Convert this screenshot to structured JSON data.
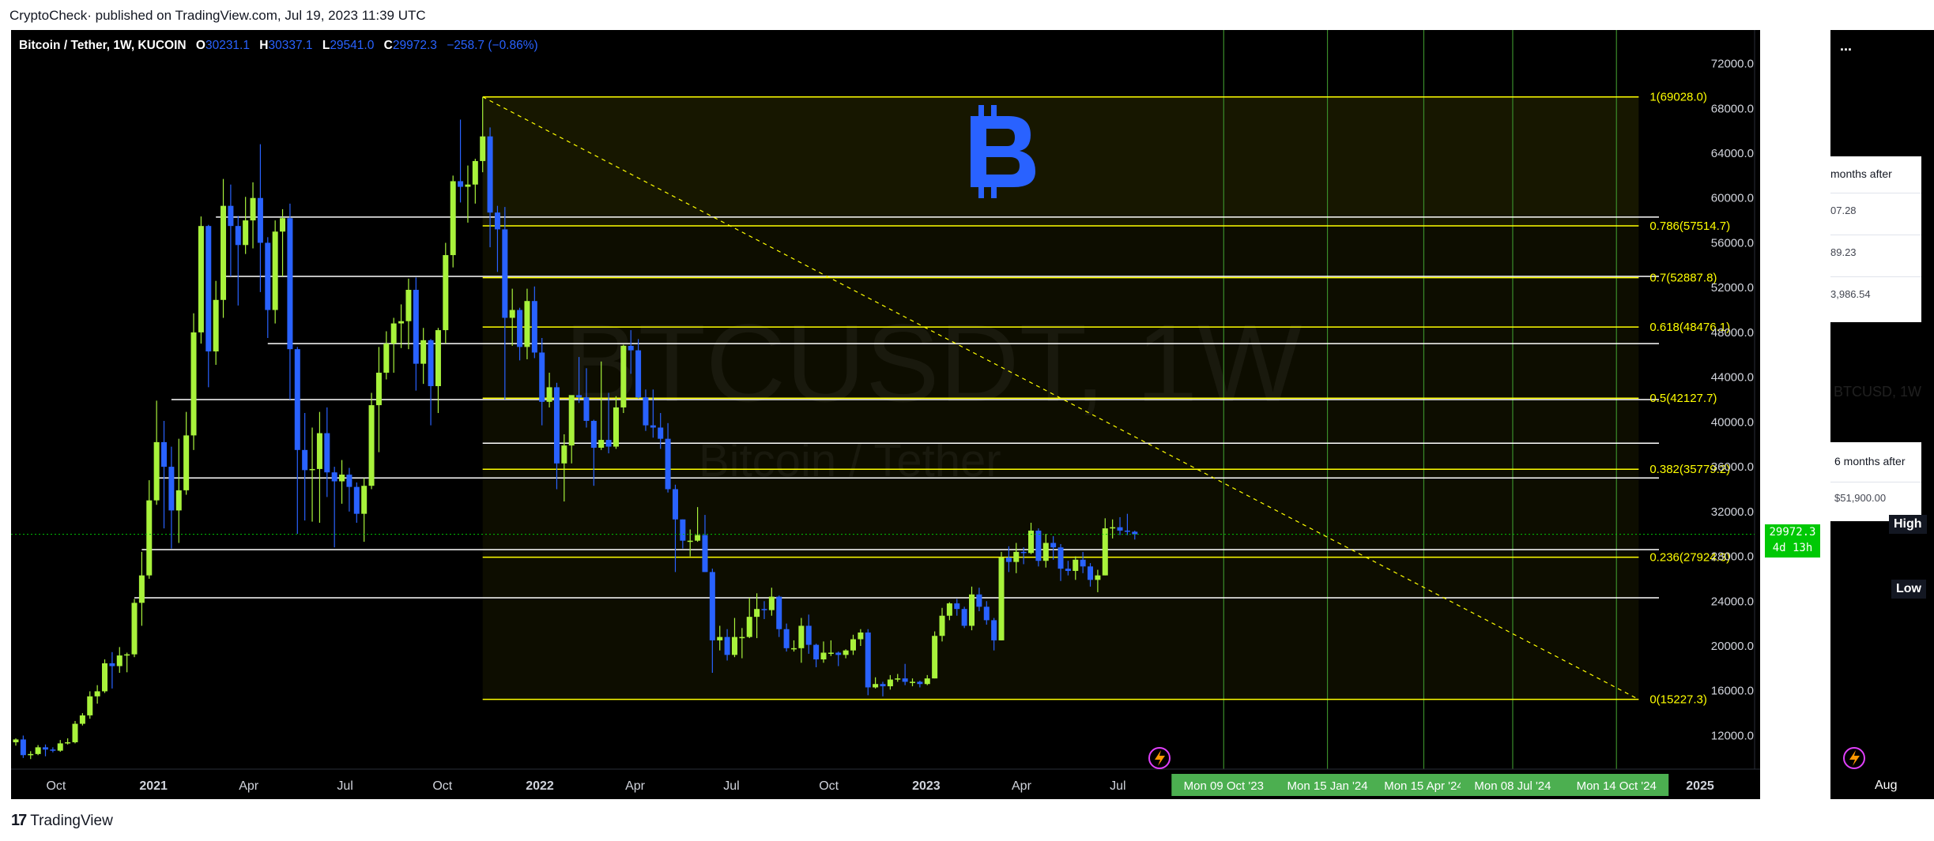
{
  "header": {
    "publisher_line": "CryptoCheck· published on TradingView.com, Jul 19, 2023 11:39 UTC"
  },
  "footer": {
    "brand": "TradingView",
    "logo": "17"
  },
  "legend": {
    "symbol": "Bitcoin / Tether, 1W, KUCOIN",
    "o_label": "O",
    "o_val": "30231.1",
    "h_label": "H",
    "h_val": "30337.1",
    "l_label": "L",
    "l_val": "29541.0",
    "c_label": "C",
    "c_val": "29972.3",
    "change": "−258.7 (−0.86%)"
  },
  "watermark": {
    "ticker": "BTCUSDT, 1W",
    "name": "Bitcoin / Tether"
  },
  "price_tag": {
    "price": "29972.3",
    "countdown": "4d 13h"
  },
  "side_panel": {
    "menu": "...",
    "card1": {
      "header": "months after",
      "rows": [
        "07.28",
        "89.23",
        "3,986.54"
      ]
    },
    "ghost_text": "BTCUSD, 1W",
    "card2": {
      "header": "6 months after",
      "value": "$51,900.00"
    },
    "high_badge": "High",
    "low_badge": "Low",
    "axis_label": "Aug"
  },
  "colors": {
    "bg": "#000000",
    "up": "#a8f23b",
    "down": "#2962ff",
    "fib": "#ffff00",
    "hline": "#ffffff",
    "vline": "#3a8c2a",
    "timebox": "#4caf50",
    "accent": "#2962ff"
  },
  "chart_data": {
    "type": "candlestick",
    "title": "Bitcoin / Tether, 1W, KUCOIN",
    "ylim": [
      9000,
      75000
    ],
    "x_range": [
      "2020-08-24",
      "2025-02-17"
    ],
    "y_ticks": [
      "72000.0",
      "68000.0",
      "64000.0",
      "60000.0",
      "56000.0",
      "52000.0",
      "48000.0",
      "44000.0",
      "40000.0",
      "36000.0",
      "32000.0",
      "28000.0",
      "24000.0",
      "20000.0",
      "16000.0",
      "12000.0"
    ],
    "x_ticks": [
      {
        "date": "2020-10-01",
        "label": "Oct"
      },
      {
        "date": "2021-01-01",
        "label": "2021",
        "bold": true
      },
      {
        "date": "2021-04-01",
        "label": "Apr"
      },
      {
        "date": "2021-07-01",
        "label": "Jul"
      },
      {
        "date": "2021-10-01",
        "label": "Oct"
      },
      {
        "date": "2022-01-01",
        "label": "2022",
        "bold": true
      },
      {
        "date": "2022-04-01",
        "label": "Apr"
      },
      {
        "date": "2022-07-01",
        "label": "Jul"
      },
      {
        "date": "2022-10-01",
        "label": "Oct"
      },
      {
        "date": "2023-01-01",
        "label": "2023",
        "bold": true
      },
      {
        "date": "2023-04-01",
        "label": "Apr"
      },
      {
        "date": "2023-07-01",
        "label": "Jul"
      },
      {
        "date": "2025-01-01",
        "label": "2025",
        "bold": true
      }
    ],
    "time_labels": [
      {
        "date": "2023-10-09",
        "label": "Mon 09 Oct '23"
      },
      {
        "date": "2024-01-15",
        "label": "Mon 15 Jan '24"
      },
      {
        "date": "2024-04-15",
        "label": "Mon 15 Apr '24"
      },
      {
        "date": "2024-07-08",
        "label": "Mon 08 Jul '24"
      },
      {
        "date": "2024-10-14",
        "label": "Mon 14 Oct '24"
      }
    ],
    "candles": [
      [
        "2020-08-24",
        11400,
        11750,
        11100,
        11650
      ],
      [
        "2020-08-31",
        11650,
        12000,
        10000,
        10250
      ],
      [
        "2020-09-07",
        10250,
        10600,
        9900,
        10350
      ],
      [
        "2020-09-14",
        10350,
        11150,
        10250,
        10950
      ],
      [
        "2020-09-21",
        10950,
        11200,
        10150,
        10750
      ],
      [
        "2020-09-28",
        10750,
        10950,
        10500,
        10650
      ],
      [
        "2020-10-05",
        10650,
        11600,
        10550,
        11300
      ],
      [
        "2020-10-12",
        11300,
        11750,
        11200,
        11400
      ],
      [
        "2020-10-19",
        11400,
        13300,
        11300,
        13050
      ],
      [
        "2020-10-26",
        13050,
        14000,
        12900,
        13800
      ],
      [
        "2020-11-02",
        13800,
        15950,
        13500,
        15500
      ],
      [
        "2020-11-09",
        15500,
        16500,
        14850,
        15950
      ],
      [
        "2020-11-16",
        15950,
        18800,
        15800,
        18450
      ],
      [
        "2020-11-23",
        18450,
        19450,
        16200,
        18200
      ],
      [
        "2020-11-30",
        18200,
        19900,
        17600,
        19150
      ],
      [
        "2020-12-07",
        19150,
        19400,
        17650,
        19250
      ],
      [
        "2020-12-14",
        19250,
        24200,
        19000,
        23850
      ],
      [
        "2020-12-21",
        23850,
        28400,
        21800,
        26300
      ],
      [
        "2020-12-28",
        26300,
        34800,
        26000,
        33000
      ],
      [
        "2021-01-04",
        33000,
        41900,
        32600,
        38200
      ],
      [
        "2021-01-11",
        38200,
        40100,
        30500,
        36000
      ],
      [
        "2021-01-18",
        36000,
        37800,
        28700,
        32100
      ],
      [
        "2021-01-25",
        32100,
        38500,
        29200,
        33900
      ],
      [
        "2021-02-01",
        33900,
        40900,
        33500,
        38800
      ],
      [
        "2021-02-08",
        38800,
        49700,
        37500,
        48000
      ],
      [
        "2021-02-15",
        48000,
        58350,
        47000,
        57500
      ],
      [
        "2021-02-22",
        57500,
        57600,
        43100,
        46300
      ],
      [
        "2021-03-01",
        46300,
        52600,
        45100,
        50900
      ],
      [
        "2021-03-08",
        50900,
        61700,
        49300,
        59300
      ],
      [
        "2021-03-15",
        59300,
        61200,
        53000,
        57500
      ],
      [
        "2021-03-22",
        57500,
        58400,
        50400,
        55800
      ],
      [
        "2021-03-29",
        55800,
        60100,
        55000,
        58000
      ],
      [
        "2021-04-05",
        58000,
        61400,
        55500,
        60000
      ],
      [
        "2021-04-12",
        60000,
        64800,
        51600,
        56000
      ],
      [
        "2021-04-19",
        56000,
        56500,
        47500,
        50000
      ],
      [
        "2021-04-26",
        50000,
        58000,
        48800,
        57000
      ],
      [
        "2021-05-03",
        57000,
        59000,
        53000,
        58200
      ],
      [
        "2021-05-10",
        58200,
        59500,
        42000,
        46500
      ],
      [
        "2021-05-17",
        46500,
        46700,
        30000,
        37500
      ],
      [
        "2021-05-24",
        37500,
        40800,
        31200,
        35700
      ],
      [
        "2021-05-31",
        35700,
        39500,
        31100,
        35800
      ],
      [
        "2021-06-07",
        35800,
        40900,
        31000,
        39000
      ],
      [
        "2021-06-14",
        39000,
        41300,
        33300,
        35500
      ],
      [
        "2021-06-21",
        35500,
        36000,
        28800,
        34700
      ],
      [
        "2021-06-28",
        34700,
        36600,
        32700,
        35300
      ],
      [
        "2021-07-05",
        35300,
        35900,
        32000,
        34200
      ],
      [
        "2021-07-12",
        34200,
        34600,
        31000,
        31800
      ],
      [
        "2021-07-19",
        31800,
        35000,
        29300,
        34300
      ],
      [
        "2021-07-26",
        34300,
        42600,
        34000,
        41500
      ],
      [
        "2021-08-02",
        41500,
        46700,
        37300,
        44400
      ],
      [
        "2021-08-09",
        44400,
        48100,
        43800,
        47000
      ],
      [
        "2021-08-16",
        47000,
        49300,
        44400,
        48800
      ],
      [
        "2021-08-23",
        48800,
        50500,
        46600,
        49000
      ],
      [
        "2021-08-30",
        49000,
        52800,
        46500,
        51800
      ],
      [
        "2021-09-06",
        51800,
        52900,
        42800,
        45200
      ],
      [
        "2021-09-13",
        45200,
        48400,
        43400,
        47300
      ],
      [
        "2021-09-20",
        47300,
        47400,
        39700,
        43200
      ],
      [
        "2021-09-27",
        43200,
        48400,
        40800,
        48200
      ],
      [
        "2021-10-04",
        48200,
        56000,
        47000,
        54900
      ],
      [
        "2021-10-11",
        54900,
        62000,
        53800,
        61500
      ],
      [
        "2021-10-18",
        61500,
        67000,
        59600,
        61000
      ],
      [
        "2021-10-25",
        61000,
        62900,
        57800,
        61200
      ],
      [
        "2021-11-01",
        61200,
        63500,
        59500,
        63300
      ],
      [
        "2021-11-08",
        63300,
        69000,
        62300,
        65500
      ],
      [
        "2021-11-15",
        65500,
        66300,
        55600,
        58700
      ],
      [
        "2021-11-22",
        58700,
        59300,
        53400,
        57200
      ],
      [
        "2021-11-29",
        57200,
        59200,
        42000,
        49300
      ],
      [
        "2021-12-06",
        49300,
        51900,
        46800,
        50000
      ],
      [
        "2021-12-13",
        50000,
        50200,
        45500,
        46700
      ],
      [
        "2021-12-20",
        46700,
        51900,
        45600,
        50800
      ],
      [
        "2021-12-27",
        50800,
        52100,
        45700,
        46200
      ],
      [
        "2022-01-03",
        46200,
        47500,
        39700,
        41800
      ],
      [
        "2022-01-10",
        41800,
        44400,
        41300,
        43100
      ],
      [
        "2022-01-17",
        43100,
        43500,
        34000,
        36300
      ],
      [
        "2022-01-24",
        36300,
        38900,
        32900,
        37900
      ],
      [
        "2022-01-31",
        37900,
        42200,
        36300,
        42400
      ],
      [
        "2022-02-07",
        42400,
        45800,
        41700,
        42200
      ],
      [
        "2022-02-14",
        42200,
        44800,
        39500,
        40100
      ],
      [
        "2022-02-21",
        40100,
        40200,
        34300,
        37700
      ],
      [
        "2022-02-28",
        37700,
        45400,
        37500,
        38400
      ],
      [
        "2022-03-07",
        38400,
        42600,
        37200,
        37800
      ],
      [
        "2022-03-14",
        37800,
        42300,
        37600,
        41300
      ],
      [
        "2022-03-21",
        41300,
        46900,
        40800,
        46800
      ],
      [
        "2022-03-28",
        46800,
        48200,
        44300,
        46400
      ],
      [
        "2022-04-04",
        46400,
        47400,
        42100,
        42200
      ],
      [
        "2022-04-11",
        42200,
        42900,
        39200,
        39700
      ],
      [
        "2022-04-18",
        39700,
        42900,
        38600,
        39500
      ],
      [
        "2022-04-25",
        39500,
        40800,
        37600,
        38500
      ],
      [
        "2022-05-02",
        38500,
        39900,
        33700,
        34000
      ],
      [
        "2022-05-09",
        34000,
        34400,
        26600,
        31300
      ],
      [
        "2022-05-16",
        31300,
        31300,
        28700,
        29400
      ],
      [
        "2022-05-23",
        29400,
        30400,
        28000,
        29400
      ],
      [
        "2022-05-30",
        29400,
        32400,
        29300,
        29900
      ],
      [
        "2022-06-06",
        29900,
        31700,
        26600,
        26600
      ],
      [
        "2022-06-13",
        26600,
        26900,
        17600,
        20500
      ],
      [
        "2022-06-20",
        20500,
        21800,
        19600,
        20800
      ],
      [
        "2022-06-27",
        20800,
        21500,
        18700,
        19200
      ],
      [
        "2022-07-04",
        19200,
        22500,
        19000,
        20800
      ],
      [
        "2022-07-11",
        20800,
        21600,
        18900,
        20800
      ],
      [
        "2022-07-18",
        20800,
        24300,
        20700,
        22600
      ],
      [
        "2022-07-25",
        22600,
        24700,
        20700,
        23300
      ],
      [
        "2022-08-01",
        23300,
        24000,
        22400,
        23200
      ],
      [
        "2022-08-08",
        23200,
        25200,
        22700,
        24400
      ],
      [
        "2022-08-15",
        24400,
        24500,
        20800,
        21500
      ],
      [
        "2022-08-22",
        21500,
        22000,
        19500,
        19800
      ],
      [
        "2022-08-29",
        19800,
        20500,
        19500,
        19800
      ],
      [
        "2022-09-05",
        19800,
        22500,
        18500,
        21800
      ],
      [
        "2022-09-12",
        21800,
        22800,
        19300,
        20100
      ],
      [
        "2022-09-19",
        20100,
        20200,
        18100,
        18800
      ],
      [
        "2022-09-26",
        18800,
        20400,
        18500,
        19400
      ],
      [
        "2022-10-03",
        19400,
        20500,
        19100,
        19400
      ],
      [
        "2022-10-10",
        19400,
        19500,
        18200,
        19200
      ],
      [
        "2022-10-17",
        19200,
        19700,
        18900,
        19600
      ],
      [
        "2022-10-24",
        19600,
        21000,
        19200,
        20600
      ],
      [
        "2022-10-31",
        20600,
        21500,
        20000,
        21200
      ],
      [
        "2022-11-07",
        21200,
        21500,
        15600,
        16300
      ],
      [
        "2022-11-14",
        16300,
        17200,
        16200,
        16600
      ],
      [
        "2022-11-21",
        16600,
        16800,
        15500,
        16400
      ],
      [
        "2022-11-28",
        16400,
        17400,
        16100,
        17000
      ],
      [
        "2022-12-05",
        17000,
        17500,
        16800,
        17100
      ],
      [
        "2022-12-12",
        17100,
        18400,
        16500,
        16800
      ],
      [
        "2022-12-19",
        16800,
        17100,
        16400,
        16800
      ],
      [
        "2022-12-26",
        16800,
        16900,
        16300,
        16600
      ],
      [
        "2023-01-02",
        16600,
        17400,
        16500,
        17100
      ],
      [
        "2023-01-09",
        17100,
        21300,
        17100,
        20900
      ],
      [
        "2023-01-16",
        20900,
        23400,
        20400,
        22700
      ],
      [
        "2023-01-23",
        22700,
        23900,
        22300,
        23800
      ],
      [
        "2023-01-30",
        23800,
        24200,
        22700,
        23300
      ],
      [
        "2023-02-06",
        23300,
        23500,
        21600,
        21800
      ],
      [
        "2023-02-13",
        21800,
        25300,
        21400,
        24600
      ],
      [
        "2023-02-20",
        24600,
        25200,
        23100,
        23500
      ],
      [
        "2023-02-27",
        23500,
        24000,
        21900,
        22300
      ],
      [
        "2023-03-06",
        22300,
        22500,
        19600,
        20500
      ],
      [
        "2023-03-13",
        20500,
        28400,
        20500,
        27900
      ],
      [
        "2023-03-20",
        27900,
        28900,
        26600,
        27500
      ],
      [
        "2023-03-27",
        27500,
        29200,
        26500,
        28400
      ],
      [
        "2023-04-03",
        28400,
        28800,
        27300,
        28300
      ],
      [
        "2023-04-10",
        28300,
        31000,
        28200,
        30300
      ],
      [
        "2023-04-17",
        30300,
        30500,
        27100,
        27600
      ],
      [
        "2023-04-24",
        27600,
        30000,
        27000,
        29200
      ],
      [
        "2023-05-01",
        29200,
        29800,
        27700,
        28800
      ],
      [
        "2023-05-08",
        28800,
        29100,
        25800,
        26900
      ],
      [
        "2023-05-15",
        26900,
        27600,
        26300,
        26700
      ],
      [
        "2023-05-22",
        26700,
        28000,
        25900,
        27700
      ],
      [
        "2023-05-29",
        27700,
        28400,
        26500,
        27100
      ],
      [
        "2023-06-05",
        27100,
        27400,
        25300,
        25900
      ],
      [
        "2023-06-12",
        25900,
        26800,
        24800,
        26300
      ],
      [
        "2023-06-19",
        26300,
        31400,
        26300,
        30500
      ],
      [
        "2023-06-26",
        30500,
        31300,
        29600,
        30600
      ],
      [
        "2023-07-03",
        30600,
        31500,
        29900,
        30300
      ],
      [
        "2023-07-10",
        30300,
        31800,
        29900,
        30200
      ],
      [
        "2023-07-17",
        30200,
        30300,
        29500,
        29972
      ]
    ],
    "fib": {
      "start_date": "2021-11-08",
      "end_date": "2024-11-04",
      "levels": [
        {
          "ratio": "1",
          "price": 69028.0,
          "label": "1(69028.0)"
        },
        {
          "ratio": "0.786",
          "price": 57514.7,
          "label": "0.786(57514.7)"
        },
        {
          "ratio": "0.7",
          "price": 52887.8,
          "label": "0.7(52887.8)"
        },
        {
          "ratio": "0.618",
          "price": 48476.1,
          "label": "0.618(48476.1)"
        },
        {
          "ratio": "0.5",
          "price": 42127.7,
          "label": "0.5(42127.7)"
        },
        {
          "ratio": "0.382",
          "price": 35779.2,
          "label": "0.382(35779.2)"
        },
        {
          "ratio": "0.236",
          "price": 27924.3,
          "label": "0.236(27924.3)"
        },
        {
          "ratio": "0",
          "price": 15227.3,
          "label": "0(15227.3)"
        }
      ],
      "trend_line": [
        [
          "2021-11-08",
          69028.0
        ],
        [
          "2024-11-04",
          15227.3
        ]
      ]
    },
    "support_lines": [
      {
        "start": "2021-03-01",
        "price": 58300
      },
      {
        "start": "2021-03-08",
        "price": 53000
      },
      {
        "start": "2021-04-19",
        "price": 47000
      },
      {
        "start": "2021-01-18",
        "price": 42000
      },
      {
        "start": "2021-11-08",
        "price": 38100
      },
      {
        "start": "2021-01-04",
        "price": 35000
      },
      {
        "start": "2020-12-21",
        "price": 28600
      },
      {
        "start": "2020-12-14",
        "price": 24300
      }
    ],
    "vertical_lines": [
      "2023-10-09",
      "2024-01-15",
      "2024-04-15",
      "2024-07-08",
      "2024-10-14"
    ],
    "current_price": 29972.3
  }
}
